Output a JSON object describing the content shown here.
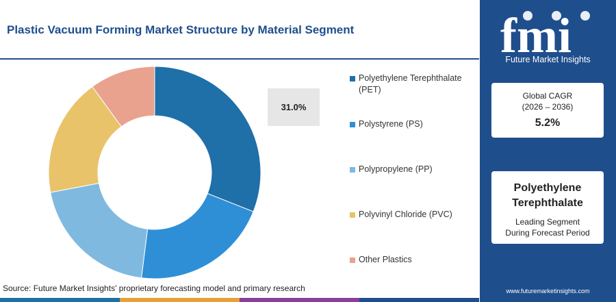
{
  "title": "Plastic Vacuum Forming Market Structure by Material Segment",
  "source": "Source: Future Market Insights' proprietary forecasting model and primary research",
  "callout": "31.0%",
  "chart_data": {
    "type": "pie",
    "donut": true,
    "categories": [
      "Polyethylene Terephthalate (PET)",
      "Polystyrene (PS)",
      "Polypropylene (PP)",
      "Polyvinyl Chloride (PVC)",
      "Other Plastics"
    ],
    "values": [
      31.0,
      21.0,
      20.0,
      18.0,
      10.0
    ],
    "colors": [
      "#1f6fa8",
      "#2e8fd6",
      "#7fb9e0",
      "#e8c36a",
      "#e9a28e"
    ],
    "labeled_value": "31.0%",
    "legend_position": "right"
  },
  "sidebar": {
    "logo_text": "fmi",
    "logo_sub": "Future Market Insights",
    "cagr_label_1": "Global CAGR",
    "cagr_label_2": "(2026 – 2036)",
    "cagr_value": "5.2%",
    "segment_name": "Polyethylene Terephthalate",
    "segment_desc_1": "Leading Segment",
    "segment_desc_2": "During Forecast Period",
    "website": "www.futuremarketinsights.com"
  },
  "bottom_bar_colors": [
    "#1f6fa8",
    "#e8a03a",
    "#8a3f9a",
    "#1f4e8c"
  ]
}
